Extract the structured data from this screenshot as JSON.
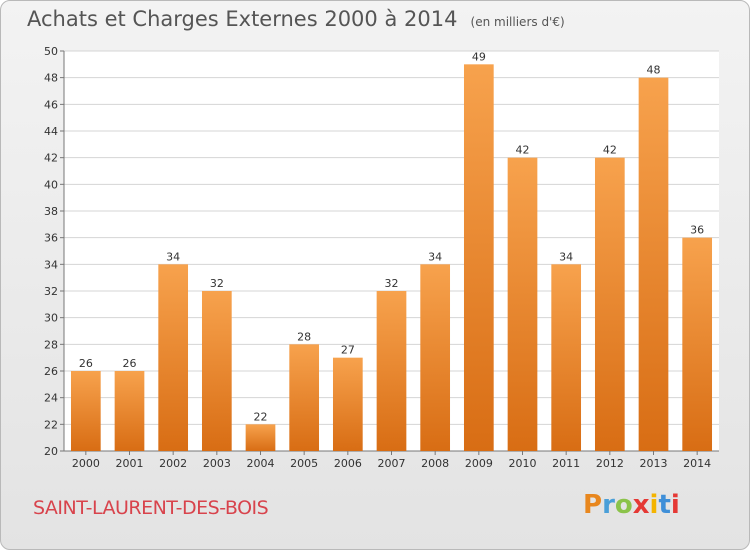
{
  "header": {
    "title": "Achats et Charges Externes 2000 à 2014",
    "subtitle": "(en milliers d'€)"
  },
  "footer": {
    "commune": "SAINT-LAURENT-DES-BOIS",
    "logo": {
      "letters": [
        "P",
        "r",
        "o",
        "x",
        "i",
        "t",
        "i"
      ],
      "colors": [
        "#e8871e",
        "#4a9fd8",
        "#8bc34a",
        "#e53935",
        "#f4b400",
        "#3f8fd8",
        "#e53935"
      ]
    }
  },
  "chart_data": {
    "type": "bar",
    "title": "Achats et Charges Externes 2000 à 2014",
    "subtitle": "(en milliers d'€)",
    "categories": [
      "2000",
      "2001",
      "2002",
      "2003",
      "2004",
      "2005",
      "2006",
      "2007",
      "2008",
      "2009",
      "2010",
      "2011",
      "2012",
      "2013",
      "2014"
    ],
    "values": [
      26,
      26,
      34,
      32,
      22,
      28,
      27,
      32,
      34,
      49,
      42,
      34,
      42,
      48,
      36
    ],
    "ylim": [
      20,
      50
    ],
    "yticks": [
      20,
      22,
      24,
      26,
      28,
      30,
      32,
      34,
      36,
      38,
      40,
      42,
      44,
      46,
      48,
      50
    ],
    "grid": true,
    "colors": {
      "bar_light": "#f7a24d",
      "bar_dark": "#d86d14",
      "grid": "#d4d4d4",
      "axis": "#777777"
    }
  }
}
